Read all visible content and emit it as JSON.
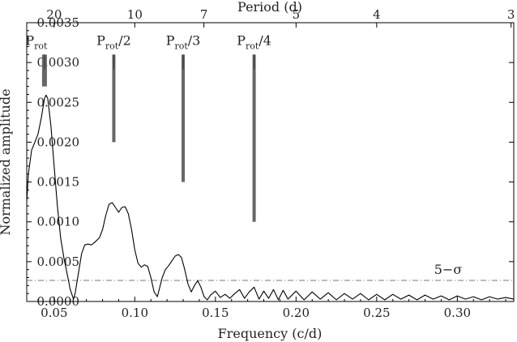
{
  "chart_data": {
    "type": "line",
    "xlabel": "Frequency (c/d)",
    "ylabel": "Normalized amplitude",
    "x2label": "Period (d)",
    "xlim": [
      0.033,
      0.335
    ],
    "ylim": [
      0.0,
      0.0035
    ],
    "x_ticks": [
      0.05,
      0.1,
      0.15,
      0.2,
      0.25,
      0.3
    ],
    "x_tick_labels": [
      "0.05",
      "0.10",
      "0.15",
      "0.20",
      "0.25",
      "0.30"
    ],
    "y_ticks": [
      0.0,
      0.0005,
      0.001,
      0.0015,
      0.002,
      0.0025,
      0.003,
      0.0035
    ],
    "y_tick_labels": [
      "0.0000",
      "0.0005",
      "0.0010",
      "0.0015",
      "0.0020",
      "0.0025",
      "0.0030",
      "0.0035"
    ],
    "period_ticks": [
      20,
      10,
      7,
      5,
      4,
      3
    ],
    "period_tick_labels": [
      "20",
      "10",
      "7",
      "5",
      "4",
      "3"
    ],
    "grid": false,
    "series": [
      {
        "x": [
          0.033,
          0.034,
          0.036,
          0.038,
          0.04,
          0.042,
          0.044,
          0.045,
          0.046,
          0.048,
          0.05,
          0.052,
          0.054,
          0.056,
          0.058,
          0.06,
          0.062,
          0.063,
          0.065,
          0.067,
          0.069,
          0.071,
          0.073,
          0.075,
          0.078,
          0.08,
          0.082,
          0.084,
          0.086,
          0.088,
          0.09,
          0.092,
          0.094,
          0.096,
          0.098,
          0.1,
          0.102,
          0.104,
          0.106,
          0.108,
          0.11,
          0.112,
          0.114,
          0.115,
          0.117,
          0.119,
          0.121,
          0.123,
          0.125,
          0.127,
          0.129,
          0.131,
          0.133,
          0.135,
          0.137,
          0.139,
          0.141,
          0.143,
          0.145,
          0.147,
          0.15,
          0.153,
          0.156,
          0.159,
          0.162,
          0.165,
          0.168,
          0.171,
          0.174,
          0.177,
          0.18,
          0.183,
          0.186,
          0.189,
          0.192,
          0.195,
          0.2,
          0.205,
          0.21,
          0.215,
          0.22,
          0.225,
          0.23,
          0.235,
          0.24,
          0.245,
          0.25,
          0.255,
          0.26,
          0.265,
          0.27,
          0.275,
          0.28,
          0.285,
          0.29,
          0.295,
          0.3,
          0.305,
          0.31,
          0.315,
          0.32,
          0.325,
          0.33,
          0.335
        ],
        "y": [
          0.00125,
          0.0016,
          0.0019,
          0.002,
          0.0021,
          0.0023,
          0.00255,
          0.00259,
          0.00255,
          0.0022,
          0.0017,
          0.0012,
          0.0008,
          0.00055,
          0.00035,
          0.00015,
          3e-05,
          0.0001,
          0.00035,
          0.0006,
          0.00071,
          0.00072,
          0.00071,
          0.00074,
          0.0008,
          0.0009,
          0.00108,
          0.00122,
          0.00124,
          0.00118,
          0.00112,
          0.00118,
          0.00119,
          0.0011,
          0.0009,
          0.00065,
          0.00048,
          0.00043,
          0.00046,
          0.00044,
          0.0003,
          0.00012,
          6e-05,
          0.00014,
          0.0003,
          0.0004,
          0.00045,
          0.00051,
          0.00057,
          0.00059,
          0.00055,
          0.0004,
          0.00022,
          0.00012,
          0.0002,
          0.00026,
          0.00018,
          6e-05,
          2e-05,
          8e-05,
          0.00013,
          5e-05,
          9e-05,
          4e-05,
          0.0001,
          0.00015,
          4e-05,
          0.00012,
          0.00018,
          3e-05,
          0.00013,
          4e-05,
          0.00015,
          2e-05,
          0.00014,
          3e-05,
          0.00013,
          2e-05,
          0.00012,
          3e-05,
          0.00011,
          2e-05,
          0.0001,
          3e-05,
          0.0001,
          2e-05,
          9e-05,
          2e-05,
          9e-05,
          3e-05,
          8e-05,
          2e-05,
          8e-05,
          3e-05,
          7e-05,
          2e-05,
          7e-05,
          3e-05,
          6e-05,
          2e-05,
          6e-05,
          3e-05,
          5e-05,
          3e-05
        ]
      }
    ],
    "threshold": {
      "label": "5−σ",
      "value": 0.000265
    },
    "markers": [
      {
        "main": "P",
        "sub": "rot",
        "suffix": "",
        "x": 0.044,
        "y_top": 0.0031,
        "y_bottom": 0.0027,
        "thick": true
      },
      {
        "main": "P",
        "sub": "rot",
        "suffix": "/2",
        "x": 0.087,
        "y_top": 0.0031,
        "y_bottom": 0.002,
        "thick": false
      },
      {
        "main": "P",
        "sub": "rot",
        "suffix": "/3",
        "x": 0.13,
        "y_top": 0.0031,
        "y_bottom": 0.0015,
        "thick": false
      },
      {
        "main": "P",
        "sub": "rot",
        "suffix": "/4",
        "x": 0.174,
        "y_top": 0.0031,
        "y_bottom": 0.001,
        "thick": false
      }
    ]
  }
}
